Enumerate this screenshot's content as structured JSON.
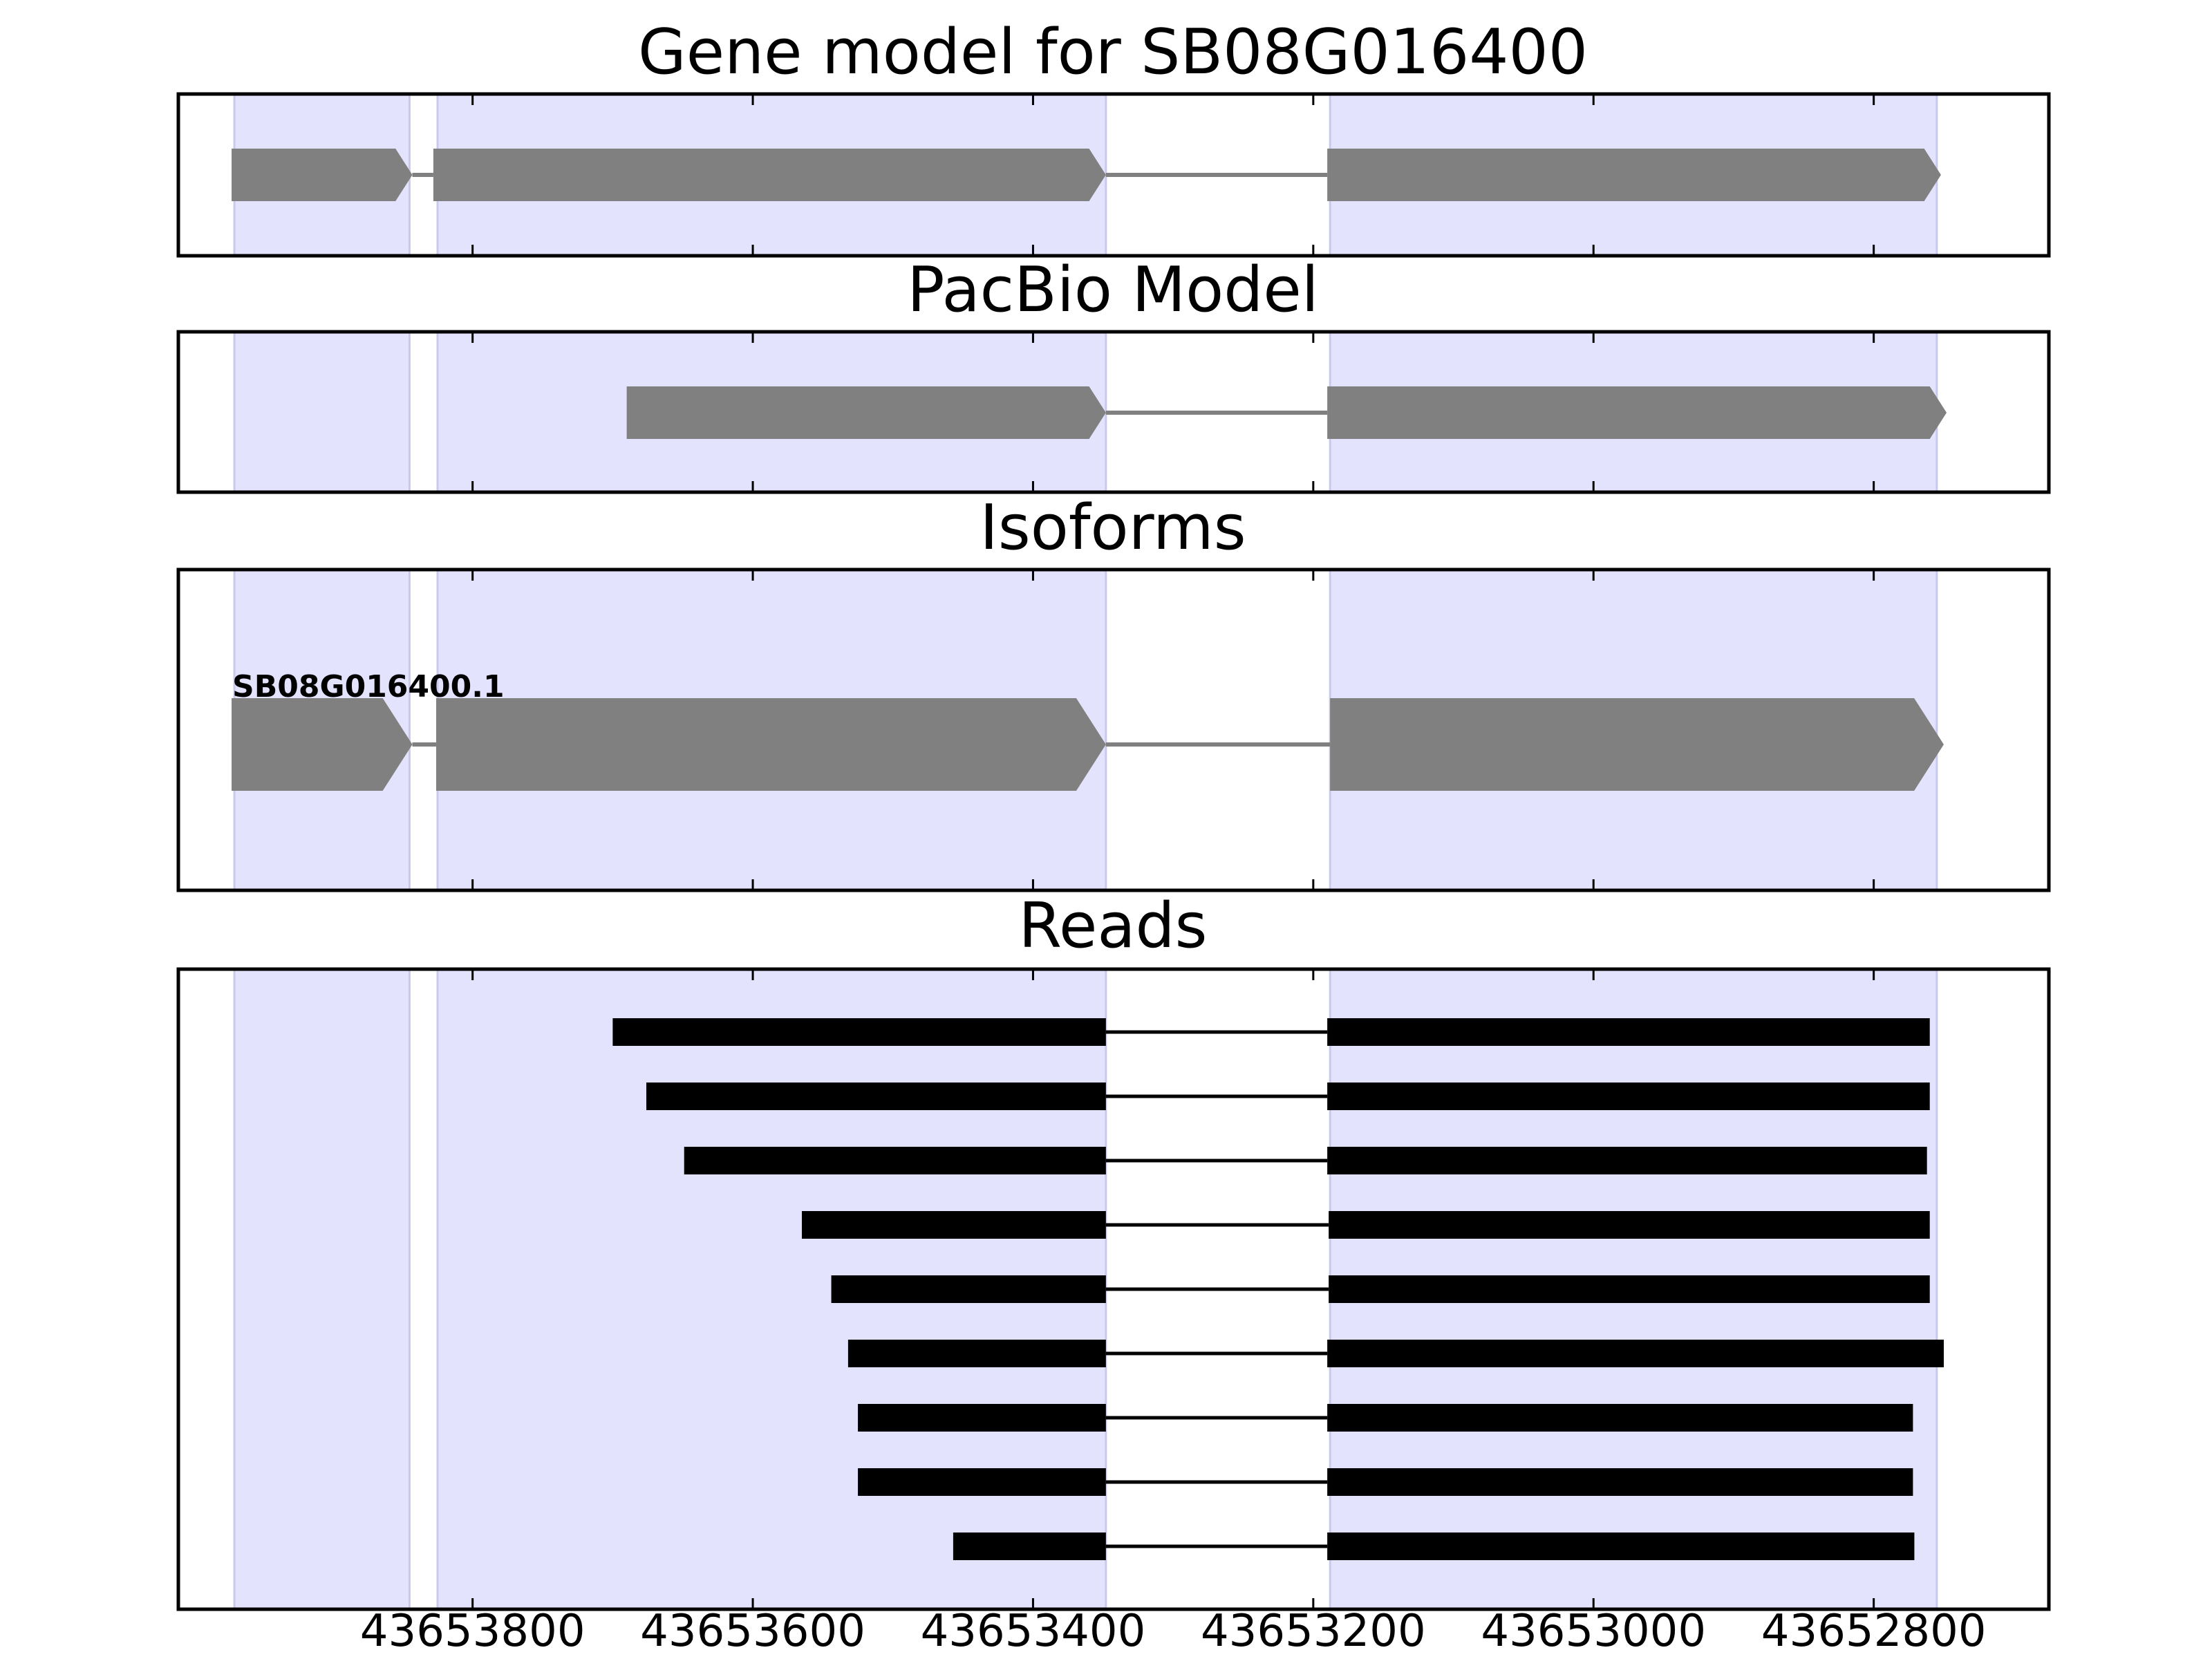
{
  "chart_data": {
    "type": "gene-track",
    "x_axis": {
      "reversed": true,
      "xlim": [
        43654010,
        43652675
      ],
      "ticks": [
        43653800,
        43653600,
        43653400,
        43653200,
        43653000,
        43652800
      ],
      "tick_labels": [
        "43653800",
        "43653600",
        "43653400",
        "43653200",
        "43653000",
        "43652800"
      ]
    },
    "shaded_exons": [
      {
        "start": 43653970,
        "end": 43653845
      },
      {
        "start": 43653825,
        "end": 43653348
      },
      {
        "start": 43653188,
        "end": 43652755
      }
    ],
    "panels": [
      {
        "title": "Gene model for SB08G016400",
        "strand": "-",
        "exons": [
          {
            "start": 43653972,
            "end": 43653843
          },
          {
            "start": 43653828,
            "end": 43653348
          },
          {
            "start": 43653190,
            "end": 43652752
          }
        ]
      },
      {
        "title": "PacBio Model",
        "strand": "-",
        "exons": [
          {
            "start": 43653690,
            "end": 43653348
          },
          {
            "start": 43653190,
            "end": 43652748
          }
        ]
      },
      {
        "title": "Isoforms",
        "strand": "-",
        "isoforms": [
          {
            "name": "SB08G016400.1",
            "exons": [
              {
                "start": 43653972,
                "end": 43653843
              },
              {
                "start": 43653826,
                "end": 43653348
              },
              {
                "start": 43653188,
                "end": 43652750
              }
            ]
          }
        ]
      },
      {
        "title": "Reads",
        "reads": [
          {
            "exons": [
              {
                "start": 43653700,
                "end": 43653348
              },
              {
                "start": 43653190,
                "end": 43652760
              }
            ]
          },
          {
            "exons": [
              {
                "start": 43653676,
                "end": 43653348
              },
              {
                "start": 43653190,
                "end": 43652760
              }
            ]
          },
          {
            "exons": [
              {
                "start": 43653649,
                "end": 43653348
              },
              {
                "start": 43653190,
                "end": 43652762
              }
            ]
          },
          {
            "exons": [
              {
                "start": 43653565,
                "end": 43653348
              },
              {
                "start": 43653189,
                "end": 43652760
              }
            ]
          },
          {
            "exons": [
              {
                "start": 43653544,
                "end": 43653348
              },
              {
                "start": 43653189,
                "end": 43652760
              }
            ]
          },
          {
            "exons": [
              {
                "start": 43653532,
                "end": 43653348
              },
              {
                "start": 43653190,
                "end": 43652750
              }
            ]
          },
          {
            "exons": [
              {
                "start": 43653525,
                "end": 43653348
              },
              {
                "start": 43653190,
                "end": 43652772
              }
            ]
          },
          {
            "exons": [
              {
                "start": 43653525,
                "end": 43653348
              },
              {
                "start": 43653190,
                "end": 43652772
              }
            ]
          },
          {
            "exons": [
              {
                "start": 43653457,
                "end": 43653348
              },
              {
                "start": 43653190,
                "end": 43652771
              }
            ]
          }
        ]
      }
    ],
    "colors": {
      "shade": "#e3e3fd",
      "shade_edge": "#c9c9ee",
      "model_fill": "#808080",
      "intron_gray": "#808080",
      "read_fill": "#000000",
      "frame": "#000000"
    }
  }
}
